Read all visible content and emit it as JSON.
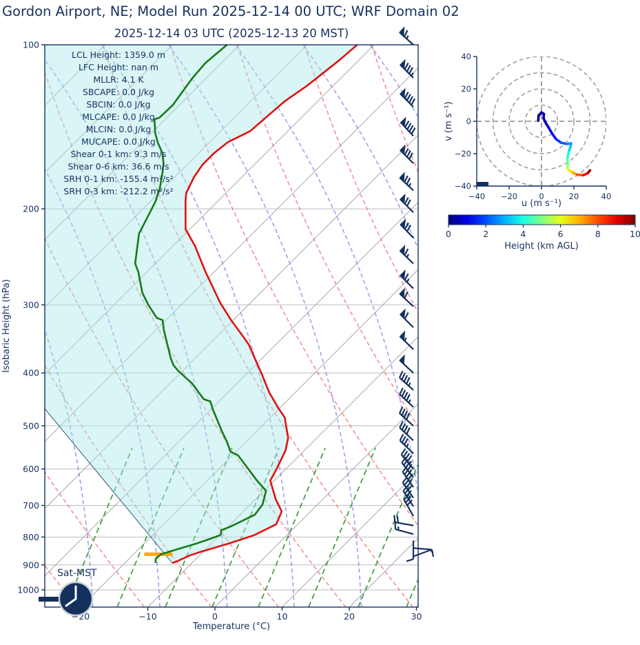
{
  "title": "Gordon Airport, NE; Model Run 2025-12-14 00 UTC; WRF Domain 02",
  "subtitle": "2025-12-14 03 UTC  (2025-12-13 20 MST)",
  "skewt": {
    "xlabel": "Temperature (°C)",
    "ylabel": "Isobaric Height (hPa)",
    "sat_label": "Sat-MST",
    "annotations": [
      "LCL Height: 1359.0 m",
      "LFC Height: nan m",
      "MLLR: 4.1 K",
      "SBCAPE: 0.0 J/kg",
      "SBCIN: 0.0 J/kg",
      "MLCAPE: 0.0 J/kg",
      "MLCIN: 0.0 J/kg",
      "MUCAPE: 0.0 J/kg",
      "Shear 0-1 km: 9.3 m/s",
      "Shear 0-6 km: 36.6 m/s",
      "SRH 0-1 km: -155.4 m²/s²",
      "SRH 0-3 km: -212.2 m²/s²"
    ]
  },
  "hodograph": {
    "xlabel": "u (m s⁻¹)",
    "ylabel": "v (m s⁻¹)",
    "ticks": [
      -40,
      -20,
      0,
      20,
      40
    ],
    "ring_radii": [
      10,
      20,
      30,
      40
    ]
  },
  "colorbar": {
    "label": "Height (km AGL)",
    "ticks": [
      0,
      2,
      4,
      6,
      8,
      10
    ],
    "range": [
      0,
      10
    ],
    "cmap": "jet"
  },
  "colors": {
    "text_navy": "#16305e",
    "temperature_line": "#e01010",
    "dewpoint_line": "#157a15",
    "parcel_line": "#24426e",
    "dry_adiabat": "rgba(238,85,85,0.65)",
    "moist_adiabat": "rgba(100,100,230,0.62)",
    "mixing_line": "rgba(40,140,40,0.85)",
    "isotherm": "#aaaaaa",
    "pressure_gridline": "#bbbbbb",
    "cin_shade": "rgba(170,233,233,0.45)",
    "lcl_marker": "#ffa500",
    "barb": "#14305c"
  },
  "chart_data": {
    "type": "skewt-log-p sounding with hodograph",
    "skewt": {
      "pressure_ticks": [
        100,
        200,
        300,
        400,
        500,
        600,
        700,
        800,
        900,
        1000
      ],
      "temperature_ticks": [
        -20,
        -10,
        0,
        10,
        20,
        30
      ],
      "pressure_range": [
        100,
        1050
      ],
      "isotherm_step_c": 10,
      "temperature_profile": [
        {
          "p": 100,
          "t": -62.5
        },
        {
          "p": 107,
          "t": -62.9
        },
        {
          "p": 119,
          "t": -63.9
        },
        {
          "p": 127,
          "t": -64.9
        },
        {
          "p": 144,
          "t": -65.6
        },
        {
          "p": 151,
          "t": -67.3
        },
        {
          "p": 158,
          "t": -67.7
        },
        {
          "p": 166,
          "t": -67.7
        },
        {
          "p": 175,
          "t": -67.1
        },
        {
          "p": 187,
          "t": -65.9
        },
        {
          "p": 193,
          "t": -64.9
        },
        {
          "p": 218,
          "t": -60.6
        },
        {
          "p": 234,
          "t": -56.7
        },
        {
          "p": 261,
          "t": -51.3
        },
        {
          "p": 298,
          "t": -44.4
        },
        {
          "p": 320,
          "t": -40.3
        },
        {
          "p": 344,
          "t": -35.9
        },
        {
          "p": 355,
          "t": -34.0
        },
        {
          "p": 376,
          "t": -31.1
        },
        {
          "p": 402,
          "t": -27.7
        },
        {
          "p": 434,
          "t": -23.9
        },
        {
          "p": 463,
          "t": -20.3
        },
        {
          "p": 483,
          "t": -17.8
        },
        {
          "p": 506,
          "t": -15.9
        },
        {
          "p": 526,
          "t": -14.3
        },
        {
          "p": 555,
          "t": -12.8
        },
        {
          "p": 603,
          "t": -11.3
        },
        {
          "p": 630,
          "t": -10.6
        },
        {
          "p": 682,
          "t": -7.0
        },
        {
          "p": 718,
          "t": -4.3
        },
        {
          "p": 758,
          "t": -3.2
        },
        {
          "p": 794,
          "t": -4.9
        },
        {
          "p": 823,
          "t": -7.5
        },
        {
          "p": 852,
          "t": -10.4
        },
        {
          "p": 864,
          "t": -11.4
        },
        {
          "p": 885,
          "t": -12.4
        },
        {
          "p": 893,
          "t": -12.9
        }
      ],
      "dewpoint_profile": [
        {
          "p": 100,
          "t": -81.9
        },
        {
          "p": 108,
          "t": -82.4
        },
        {
          "p": 115,
          "t": -82.1
        },
        {
          "p": 129,
          "t": -81.0
        },
        {
          "p": 136,
          "t": -81.1
        },
        {
          "p": 137,
          "t": -81.6
        },
        {
          "p": 145,
          "t": -79.5
        },
        {
          "p": 151,
          "t": -77.7
        },
        {
          "p": 158,
          "t": -75.4
        },
        {
          "p": 165,
          "t": -73.7
        },
        {
          "p": 172,
          "t": -72.4
        },
        {
          "p": 183,
          "t": -70.6
        },
        {
          "p": 194,
          "t": -69.2
        },
        {
          "p": 218,
          "t": -67.2
        },
        {
          "p": 222,
          "t": -66.9
        },
        {
          "p": 252,
          "t": -63.0
        },
        {
          "p": 261,
          "t": -61.3
        },
        {
          "p": 285,
          "t": -57.6
        },
        {
          "p": 300,
          "t": -54.9
        },
        {
          "p": 317,
          "t": -51.7
        },
        {
          "p": 320,
          "t": -50.5
        },
        {
          "p": 334,
          "t": -48.8
        },
        {
          "p": 376,
          "t": -43.6
        },
        {
          "p": 387,
          "t": -42.2
        },
        {
          "p": 396,
          "t": -40.7
        },
        {
          "p": 418,
          "t": -36.7
        },
        {
          "p": 447,
          "t": -32.6
        },
        {
          "p": 451,
          "t": -31.3
        },
        {
          "p": 466,
          "t": -29.8
        },
        {
          "p": 511,
          "t": -25.2
        },
        {
          "p": 533,
          "t": -23.0
        },
        {
          "p": 558,
          "t": -20.8
        },
        {
          "p": 566,
          "t": -19.2
        },
        {
          "p": 598,
          "t": -15.8
        },
        {
          "p": 630,
          "t": -12.6
        },
        {
          "p": 658,
          "t": -9.7
        },
        {
          "p": 697,
          "t": -8.2
        },
        {
          "p": 728,
          "t": -7.8
        },
        {
          "p": 766,
          "t": -9.7
        },
        {
          "p": 777,
          "t": -10.5
        },
        {
          "p": 793,
          "t": -9.9
        },
        {
          "p": 805,
          "t": -10.8
        },
        {
          "p": 821,
          "t": -12.1
        },
        {
          "p": 840,
          "t": -14.0
        },
        {
          "p": 860,
          "t": -15.9
        },
        {
          "p": 877,
          "t": -16.0
        },
        {
          "p": 893,
          "t": -15.4
        }
      ],
      "parcel_path": [
        {
          "p": 893,
          "t": -12.9
        },
        {
          "p": 470,
          "t": -54.2
        }
      ],
      "lcl_marker": {
        "p": 860,
        "t1": -18.4,
        "t2": -14.2
      },
      "wind_barbs": [
        {
          "p": 100,
          "spd": 65,
          "dir": 312
        },
        {
          "p": 115,
          "spd": 85,
          "dir": 315
        },
        {
          "p": 130,
          "spd": 90,
          "dir": 315
        },
        {
          "p": 147,
          "spd": 90,
          "dir": 317
        },
        {
          "p": 165,
          "spd": 80,
          "dir": 315
        },
        {
          "p": 185,
          "spd": 75,
          "dir": 313
        },
        {
          "p": 203,
          "spd": 70,
          "dir": 315
        },
        {
          "p": 226,
          "spd": 70,
          "dir": 316
        },
        {
          "p": 252,
          "spd": 65,
          "dir": 314
        },
        {
          "p": 280,
          "spd": 65,
          "dir": 315
        },
        {
          "p": 302,
          "spd": 60,
          "dir": 313
        },
        {
          "p": 330,
          "spd": 60,
          "dir": 315
        },
        {
          "p": 362,
          "spd": 55,
          "dir": 314
        },
        {
          "p": 400,
          "spd": 50,
          "dir": 313
        },
        {
          "p": 430,
          "spd": 45,
          "dir": 312
        },
        {
          "p": 462,
          "spd": 45,
          "dir": 313
        },
        {
          "p": 500,
          "spd": 40,
          "dir": 312
        },
        {
          "p": 532,
          "spd": 40,
          "dir": 313
        },
        {
          "p": 562,
          "spd": 35,
          "dir": 314
        },
        {
          "p": 600,
          "spd": 45,
          "dir": 320
        },
        {
          "p": 622,
          "spd": 45,
          "dir": 322
        },
        {
          "p": 648,
          "spd": 45,
          "dir": 325
        },
        {
          "p": 678,
          "spd": 40,
          "dir": 325
        },
        {
          "p": 703,
          "spd": 35,
          "dir": 327
        },
        {
          "p": 732,
          "spd": 30,
          "dir": 330
        },
        {
          "p": 762,
          "spd": 20,
          "dir": 280
        },
        {
          "p": 790,
          "spd": 15,
          "dir": 285
        },
        {
          "p": 812,
          "spd": 10,
          "dir": 180
        },
        {
          "p": 838,
          "spd": 10,
          "dir": 95
        },
        {
          "p": 868,
          "spd": 5,
          "dir": 70
        }
      ],
      "surface_marker_pressure": 1038
    },
    "hodograph": {
      "axis_range": [
        -40,
        40
      ],
      "trace_u_v_heightkm": [
        [
          -2,
          0.5,
          0
        ],
        [
          -1.8,
          3.5,
          0.08
        ],
        [
          0,
          5.5,
          0.15
        ],
        [
          1.5,
          4.5,
          0.25
        ],
        [
          1.3,
          1.8,
          0.4
        ],
        [
          2.6,
          -1,
          0.6
        ],
        [
          4.5,
          -4,
          0.8
        ],
        [
          6.5,
          -7.5,
          1.1
        ],
        [
          9,
          -11,
          1.5
        ],
        [
          12,
          -13.2,
          1.9
        ],
        [
          15.5,
          -14,
          2.3
        ],
        [
          18.3,
          -13.6,
          2.7
        ],
        [
          17.8,
          -16,
          3.1
        ],
        [
          16.8,
          -19.2,
          3.6
        ],
        [
          16,
          -23,
          4.2
        ],
        [
          16.2,
          -26.5,
          4.9
        ],
        [
          15.9,
          -29,
          5.5
        ],
        [
          17.4,
          -30.5,
          6.2
        ],
        [
          19.5,
          -31.8,
          6.9
        ],
        [
          22,
          -33,
          7.6
        ],
        [
          25.8,
          -33.3,
          8.3
        ],
        [
          28.6,
          -32,
          9.1
        ],
        [
          30,
          -30.3,
          10
        ]
      ]
    }
  },
  "clock": {
    "hour": 8,
    "minute": 0
  }
}
